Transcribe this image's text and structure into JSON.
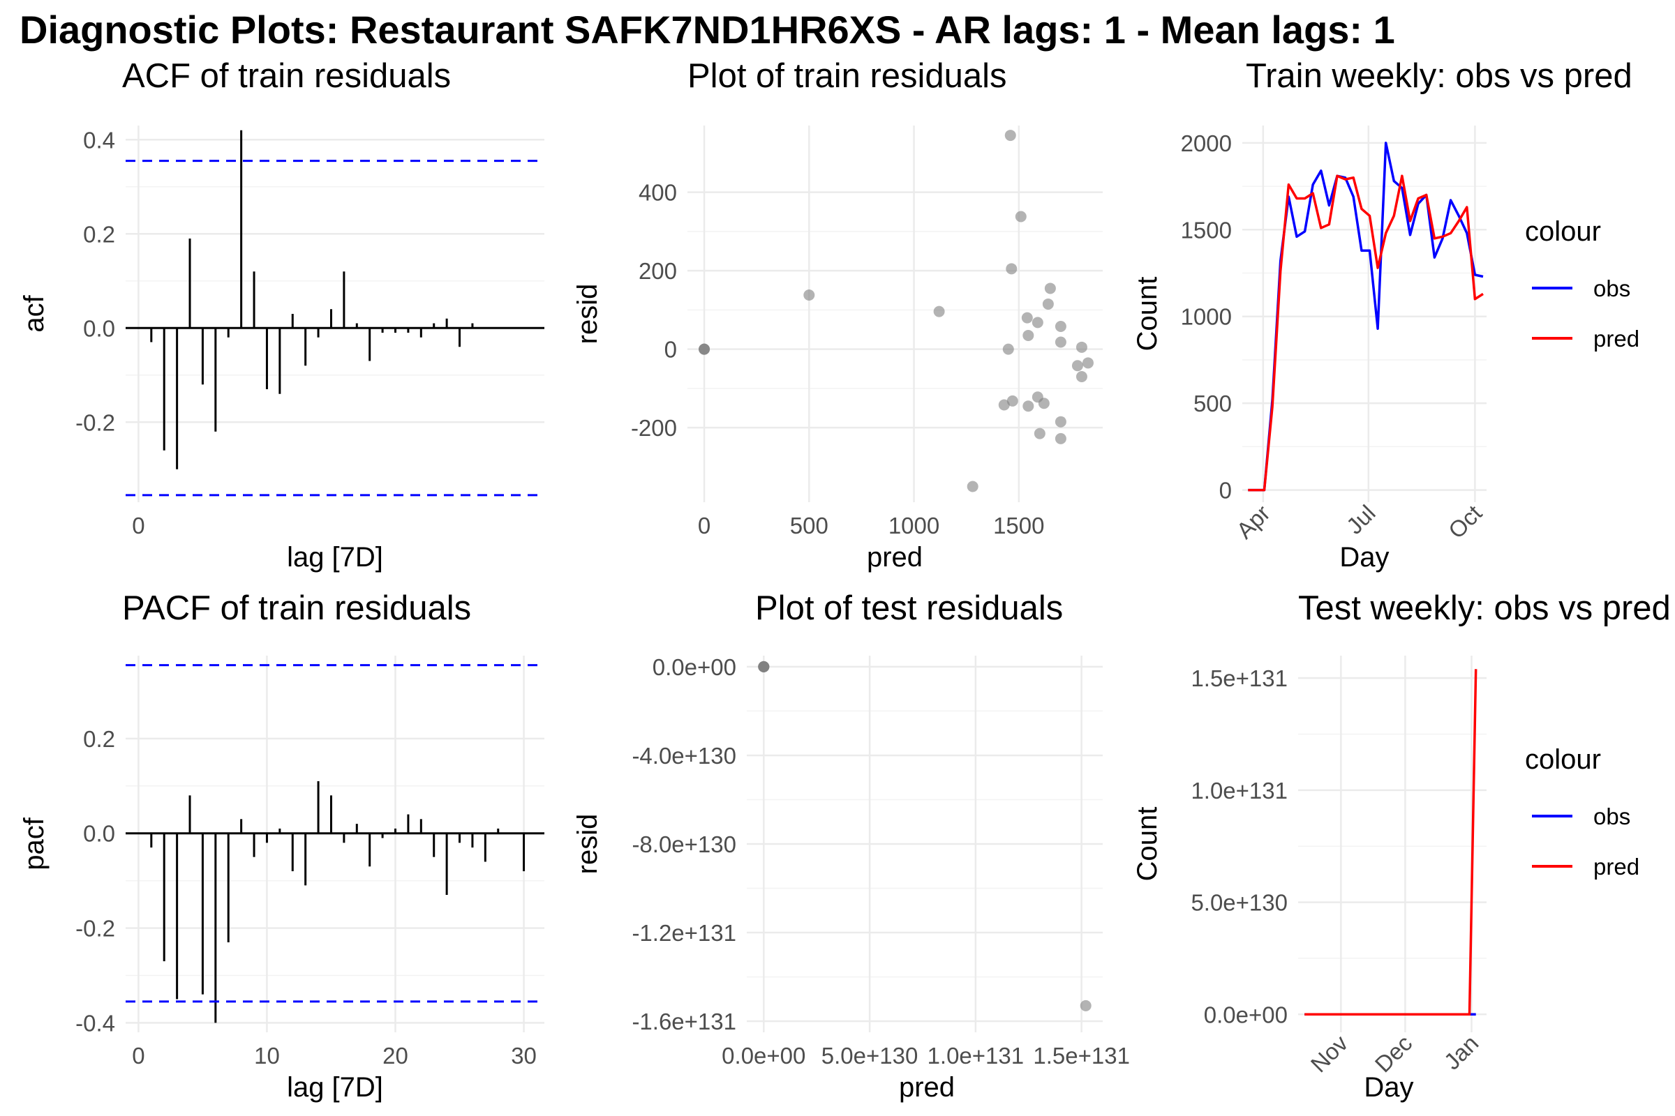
{
  "main_title": "Diagnostic Plots: Restaurant SAFK7ND1HR6XS - AR lags: 1 - Mean lags: 1",
  "colors": {
    "ci": "#0000ff",
    "obs": "#0000ff",
    "pred": "#ff0000",
    "grid": "#ebebeb",
    "axis_text": "#4d4d4d",
    "point": "#808080"
  },
  "chart_data": [
    {
      "id": "acf",
      "type": "bar",
      "title": "ACF of train residuals",
      "xlabel": "lag [7D]",
      "ylabel": "acf",
      "xlim": [
        -1,
        31.6
      ],
      "ylim": [
        -0.37,
        0.43
      ],
      "x_ticks": [
        0
      ],
      "x_tick_labels": [
        "0"
      ],
      "y_ticks": [
        -0.2,
        0.0,
        0.2,
        0.4
      ],
      "y_tick_labels": [
        "-0.2",
        "0.0",
        "0.2",
        "0.4"
      ],
      "ci": 0.355,
      "lags": [
        1,
        2,
        3,
        4,
        5,
        6,
        7,
        8,
        9,
        10,
        11,
        12,
        13,
        14,
        15,
        16,
        17,
        18,
        19,
        20,
        21,
        22,
        23,
        24,
        25,
        26,
        27,
        28,
        29,
        30
      ],
      "values": [
        -0.03,
        -0.26,
        -0.3,
        0.19,
        -0.12,
        -0.22,
        -0.02,
        0.42,
        0.12,
        -0.13,
        -0.14,
        0.03,
        -0.08,
        -0.02,
        0.04,
        0.12,
        0.01,
        -0.07,
        -0.01,
        -0.01,
        -0.01,
        -0.02,
        0.01,
        0.02,
        -0.04,
        0.01,
        0,
        0,
        0,
        0
      ]
    },
    {
      "id": "train_resid",
      "type": "scatter",
      "title": "Plot of train residuals",
      "xlabel": "pred",
      "ylabel": "resid",
      "xlim": [
        -80,
        1900
      ],
      "ylim": [
        -390,
        570
      ],
      "x_ticks": [
        0,
        500,
        1000,
        1500
      ],
      "x_tick_labels": [
        "0",
        "500",
        "1000",
        "1500"
      ],
      "y_ticks": [
        -200,
        0,
        200,
        400
      ],
      "y_tick_labels": [
        "-200",
        "0",
        "200",
        "400"
      ],
      "points": [
        [
          0,
          0
        ],
        [
          0,
          0
        ],
        [
          0,
          0
        ],
        [
          500,
          138
        ],
        [
          1120,
          96
        ],
        [
          1460,
          545
        ],
        [
          1510,
          338
        ],
        [
          1465,
          205
        ],
        [
          1650,
          155
        ],
        [
          1640,
          115
        ],
        [
          1540,
          80
        ],
        [
          1590,
          68
        ],
        [
          1700,
          58
        ],
        [
          1545,
          35
        ],
        [
          1700,
          18
        ],
        [
          1450,
          0
        ],
        [
          1800,
          5
        ],
        [
          1780,
          -42
        ],
        [
          1830,
          -35
        ],
        [
          1800,
          -70
        ],
        [
          1590,
          -122
        ],
        [
          1620,
          -138
        ],
        [
          1470,
          -132
        ],
        [
          1430,
          -142
        ],
        [
          1545,
          -145
        ],
        [
          1700,
          -185
        ],
        [
          1600,
          -215
        ],
        [
          1700,
          -228
        ],
        [
          1280,
          -350
        ]
      ]
    },
    {
      "id": "train_weekly",
      "type": "line",
      "title": "Train weekly: obs vs pred",
      "xlabel": "Day",
      "ylabel": "Count",
      "legend_title": "colour",
      "legend_position": "right",
      "xlim": [
        "2023-03-14",
        "2023-10-11"
      ],
      "ylim": [
        -70,
        2100
      ],
      "x_ticks": [
        "2023-04-01",
        "2023-07-01",
        "2023-10-01"
      ],
      "x_tick_labels": [
        "Apr",
        "Jul",
        "Oct"
      ],
      "y_ticks": [
        0,
        500,
        1000,
        1500,
        2000
      ],
      "y_tick_labels": [
        "0",
        "500",
        "1000",
        "1500",
        "2000"
      ],
      "x": [
        "2023-03-19",
        "2023-03-26",
        "2023-04-02",
        "2023-04-09",
        "2023-04-16",
        "2023-04-23",
        "2023-04-30",
        "2023-05-07",
        "2023-05-14",
        "2023-05-21",
        "2023-05-28",
        "2023-06-04",
        "2023-06-11",
        "2023-06-18",
        "2023-06-25",
        "2023-07-02",
        "2023-07-09",
        "2023-07-16",
        "2023-07-23",
        "2023-07-30",
        "2023-08-06",
        "2023-08-13",
        "2023-08-20",
        "2023-08-27",
        "2023-09-03",
        "2023-09-10",
        "2023-09-17",
        "2023-09-24",
        "2023-10-01",
        "2023-10-08"
      ],
      "series": [
        {
          "name": "obs",
          "values": [
            0,
            0,
            0,
            520,
            1320,
            1690,
            1460,
            1490,
            1760,
            1840,
            1640,
            1810,
            1800,
            1690,
            1380,
            1380,
            930,
            2000,
            1780,
            1740,
            1470,
            1650,
            1700,
            1340,
            1450,
            1670,
            1580,
            1480,
            1240,
            1230
          ]
        },
        {
          "name": "pred",
          "values": [
            0,
            0,
            0,
            480,
            1260,
            1760,
            1680,
            1680,
            1710,
            1510,
            1530,
            1810,
            1790,
            1800,
            1620,
            1580,
            1280,
            1480,
            1580,
            1810,
            1550,
            1680,
            1700,
            1450,
            1460,
            1480,
            1550,
            1630,
            1100,
            1130
          ]
        }
      ]
    },
    {
      "id": "pacf",
      "type": "bar",
      "title": "PACF of train residuals",
      "xlabel": "lag [7D]",
      "ylabel": "pacf",
      "xlim": [
        -1,
        31.6
      ],
      "ylim": [
        -0.42,
        0.375
      ],
      "x_ticks": [
        0,
        10,
        20,
        30
      ],
      "x_tick_labels": [
        "0",
        "10",
        "20",
        "30"
      ],
      "y_ticks": [
        -0.4,
        -0.2,
        0.0,
        0.2
      ],
      "y_tick_labels": [
        "-0.4",
        "-0.2",
        "0.0",
        "0.2"
      ],
      "ci": 0.355,
      "lags": [
        1,
        2,
        3,
        4,
        5,
        6,
        7,
        8,
        9,
        10,
        11,
        12,
        13,
        14,
        15,
        16,
        17,
        18,
        19,
        20,
        21,
        22,
        23,
        24,
        25,
        26,
        27,
        28,
        29,
        30
      ],
      "values": [
        -0.03,
        -0.27,
        -0.35,
        0.08,
        -0.34,
        -0.4,
        -0.23,
        0.03,
        -0.05,
        -0.02,
        0.01,
        -0.08,
        -0.11,
        0.11,
        0.08,
        -0.02,
        0.02,
        -0.07,
        -0.01,
        0.01,
        0.04,
        0.03,
        -0.05,
        -0.13,
        -0.02,
        -0.03,
        -0.06,
        0.01,
        0,
        -0.08
      ]
    },
    {
      "id": "test_resid",
      "type": "scatter",
      "title": "Plot of test residuals",
      "xlabel": "pred",
      "ylabel": "resid",
      "xlim": [
        -8e+129,
        1.6e+131
      ],
      "ylim": [
        -1.65e+131,
        5e+129
      ],
      "x_ticks": [
        0,
        5e+130,
        1e+131,
        1.5e+131
      ],
      "x_tick_labels": [
        "0.0e+00",
        "5.0e+130",
        "1.0e+131",
        "1.5e+131"
      ],
      "y_ticks": [
        0,
        -4e+130,
        -8e+130,
        -1.2e+131,
        -1.6e+131
      ],
      "y_tick_labels": [
        "0.0e+00",
        "-4.0e+130",
        "-8.0e+130",
        "-1.2e+131",
        "-1.6e+131"
      ],
      "points": [
        [
          0,
          0
        ],
        [
          0,
          0
        ],
        [
          0,
          0
        ],
        [
          0,
          0
        ],
        [
          0,
          0
        ],
        [
          1.52e+131,
          -1.53e+131
        ]
      ]
    },
    {
      "id": "test_weekly",
      "type": "line",
      "title": "Test weekly: obs vs pred",
      "xlabel": "Day",
      "ylabel": "Count",
      "legend_title": "colour",
      "legend_position": "right",
      "xlim": [
        "2023-10-12",
        "2024-01-08"
      ],
      "ylim": [
        -8e+129,
        1.6e+131
      ],
      "x_ticks": [
        "2023-11-01",
        "2023-12-01",
        "2024-01-01"
      ],
      "x_tick_labels": [
        "Nov",
        "Dec",
        "Jan"
      ],
      "y_ticks": [
        0,
        5e+130,
        1e+131,
        1.5e+131
      ],
      "y_tick_labels": [
        "0.0e+00",
        "5.0e+130",
        "1.0e+131",
        "1.5e+131"
      ],
      "x": [
        "2023-10-15",
        "2023-10-22",
        "2023-10-29",
        "2023-11-05",
        "2023-11-12",
        "2023-11-19",
        "2023-11-26",
        "2023-12-03",
        "2023-12-10",
        "2023-12-17",
        "2023-12-24",
        "2023-12-31",
        "2024-01-03"
      ],
      "series": [
        {
          "name": "obs",
          "values": [
            0,
            0,
            0,
            0,
            0,
            0,
            0,
            0,
            0,
            0,
            0,
            0,
            0
          ]
        },
        {
          "name": "pred",
          "values": [
            0,
            0,
            0,
            0,
            0,
            0,
            0,
            0,
            0,
            0,
            0,
            0,
            1.54e+131
          ]
        }
      ]
    }
  ]
}
